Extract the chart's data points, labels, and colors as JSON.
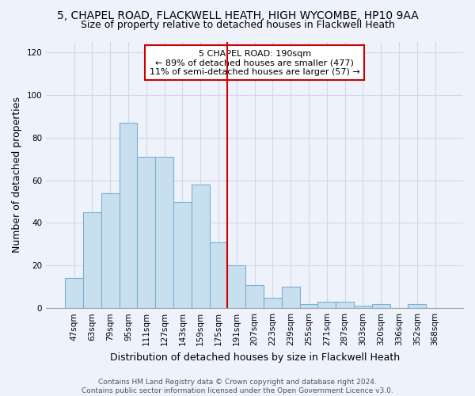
{
  "title_line1": "5, CHAPEL ROAD, FLACKWELL HEATH, HIGH WYCOMBE, HP10 9AA",
  "title_line2": "Size of property relative to detached houses in Flackwell Heath",
  "xlabel": "Distribution of detached houses by size in Flackwell Heath",
  "ylabel": "Number of detached properties",
  "bar_labels": [
    "47sqm",
    "63sqm",
    "79sqm",
    "95sqm",
    "111sqm",
    "127sqm",
    "143sqm",
    "159sqm",
    "175sqm",
    "191sqm",
    "207sqm",
    "223sqm",
    "239sqm",
    "255sqm",
    "271sqm",
    "287sqm",
    "303sqm",
    "320sqm",
    "336sqm",
    "352sqm",
    "368sqm"
  ],
  "bar_values": [
    14,
    45,
    54,
    87,
    71,
    71,
    50,
    58,
    31,
    20,
    11,
    5,
    10,
    2,
    3,
    3,
    1,
    2,
    0,
    2,
    0
  ],
  "bar_color": "#c8dff0",
  "bar_edge_color": "#7ab0d4",
  "reference_line_color": "#cc0000",
  "annotation_line1": "5 CHAPEL ROAD: 190sqm",
  "annotation_line2": "← 89% of detached houses are smaller (477)",
  "annotation_line3": "11% of semi-detached houses are larger (57) →",
  "annotation_box_color": "#ffffff",
  "annotation_box_edge_color": "#cc0000",
  "ylim": [
    0,
    125
  ],
  "yticks": [
    0,
    20,
    40,
    60,
    80,
    100,
    120
  ],
  "footer_line1": "Contains HM Land Registry data © Crown copyright and database right 2024.",
  "footer_line2": "Contains public sector information licensed under the Open Government Licence v3.0.",
  "background_color": "#eef2fb",
  "grid_color": "#d0d8e8",
  "title_fontsize": 10,
  "subtitle_fontsize": 9,
  "axis_label_fontsize": 9,
  "tick_fontsize": 7.5,
  "annotation_fontsize": 8,
  "footer_fontsize": 6.5
}
